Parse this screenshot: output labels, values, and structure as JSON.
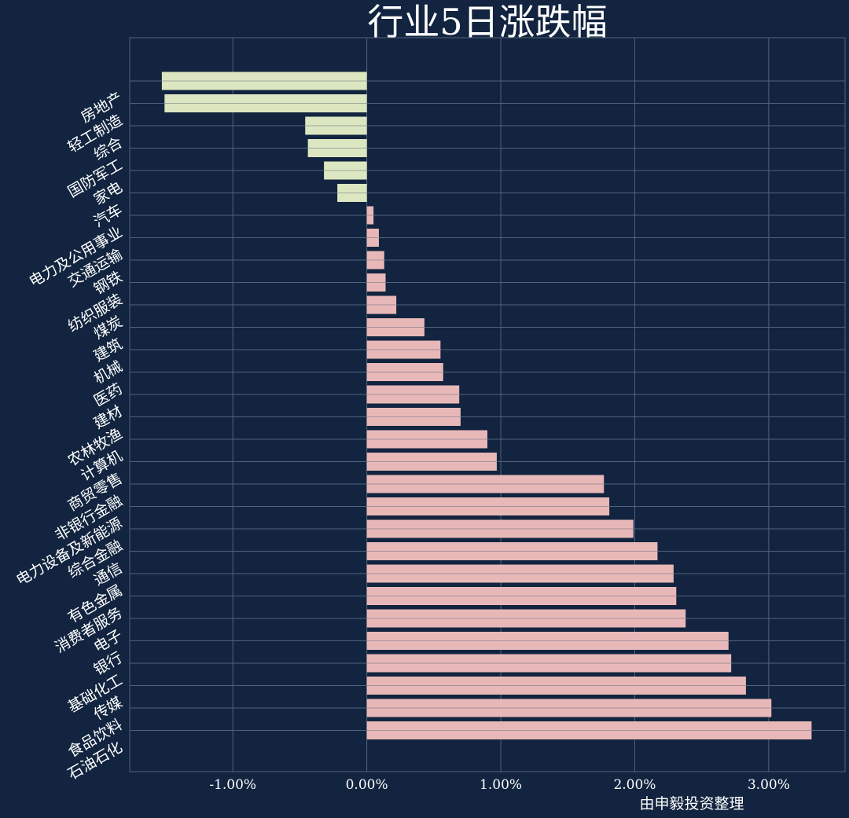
{
  "chart_data": {
    "type": "bar",
    "orientation": "horizontal",
    "title": "行业5日涨跌幅",
    "xlabel": "由申毅投资整理",
    "ylabel": "",
    "xlim": [
      -1.77,
      3.57
    ],
    "xticks": [
      -1.0,
      0.0,
      1.0,
      2.0,
      3.0
    ],
    "xtick_labels": [
      "-1.00%",
      "0.00%",
      "1.00%",
      "2.00%",
      "3.00%"
    ],
    "grid": true,
    "categories": [
      "房地产",
      "轻工制造",
      "综合",
      "国防军工",
      "家电",
      "汽车",
      "电力及公用事业",
      "交通运输",
      "钢铁",
      "纺织服装",
      "煤炭",
      "建筑",
      "机械",
      "医药",
      "建材",
      "农林牧渔",
      "计算机",
      "商贸零售",
      "非银行金融",
      "电力设备及新能源",
      "综合金融",
      "通信",
      "有色金属",
      "消费者服务",
      "电子",
      "银行",
      "基础化工",
      "传媒",
      "食品饮料",
      "石油石化"
    ],
    "values": [
      -1.53,
      -1.51,
      -0.46,
      -0.44,
      -0.32,
      -0.22,
      0.05,
      0.09,
      0.13,
      0.14,
      0.22,
      0.43,
      0.55,
      0.57,
      0.69,
      0.7,
      0.9,
      0.97,
      1.77,
      1.81,
      1.99,
      2.17,
      2.29,
      2.31,
      2.38,
      2.7,
      2.72,
      2.83,
      3.02,
      3.32
    ],
    "colors": {
      "negative": "#dce6c0",
      "positive": "#e8b8b8",
      "background": "#12243f",
      "grid": "#52627a",
      "text": "#ffffff"
    }
  }
}
